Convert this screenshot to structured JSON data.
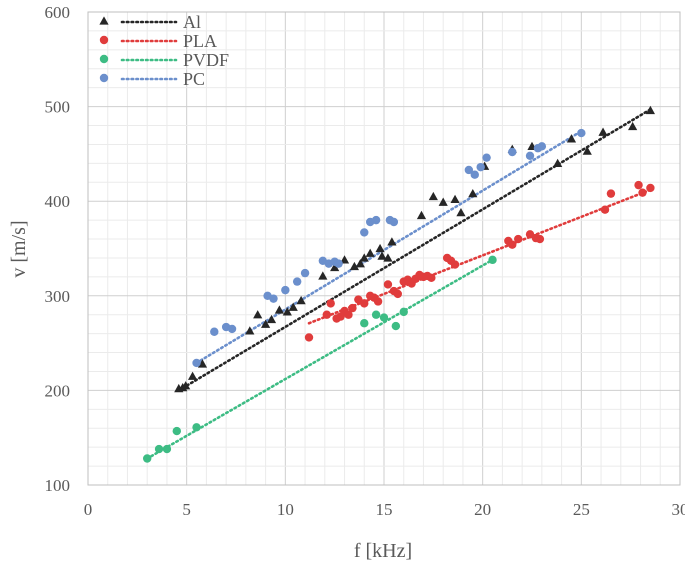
{
  "chart_data": {
    "type": "scatter",
    "title": "",
    "xlabel": "f [kHz]",
    "ylabel": "v [m/s]",
    "xlim": [
      0,
      30
    ],
    "ylim": [
      100,
      600
    ],
    "xticks": [
      0,
      5,
      10,
      15,
      20,
      25,
      30
    ],
    "yticks": [
      100,
      200,
      300,
      400,
      500,
      600
    ],
    "grid": "major and minor",
    "legend_position": "top-left",
    "series": [
      {
        "name": "Al",
        "marker": "triangle",
        "color": "#262626",
        "points": [
          [
            4.6,
            202
          ],
          [
            4.8,
            203
          ],
          [
            4.95,
            205
          ],
          [
            5.3,
            215
          ],
          [
            5.8,
            228
          ],
          [
            8.2,
            263
          ],
          [
            8.6,
            280
          ],
          [
            9.0,
            270
          ],
          [
            9.3,
            275
          ],
          [
            9.7,
            285
          ],
          [
            10.1,
            283
          ],
          [
            10.4,
            288
          ],
          [
            10.8,
            295
          ],
          [
            11.9,
            321
          ],
          [
            12.5,
            330
          ],
          [
            13.0,
            338
          ],
          [
            13.5,
            331
          ],
          [
            13.8,
            334
          ],
          [
            14.0,
            340
          ],
          [
            14.3,
            345
          ],
          [
            14.8,
            350
          ],
          [
            14.9,
            342
          ],
          [
            15.2,
            340
          ],
          [
            15.4,
            357
          ],
          [
            16.9,
            385
          ],
          [
            17.5,
            405
          ],
          [
            18.0,
            399
          ],
          [
            18.6,
            402
          ],
          [
            18.9,
            388
          ],
          [
            19.5,
            408
          ],
          [
            20.1,
            437
          ],
          [
            21.5,
            455
          ],
          [
            22.5,
            458
          ],
          [
            23.8,
            440
          ],
          [
            24.5,
            466
          ],
          [
            25.3,
            453
          ],
          [
            26.1,
            473
          ],
          [
            27.6,
            479
          ],
          [
            28.5,
            496
          ]
        ],
        "trendline": [
          [
            4.6,
            200
          ],
          [
            28.5,
            497
          ]
        ]
      },
      {
        "name": "PLA",
        "marker": "circle",
        "color": "#e03c3c",
        "points": [
          [
            11.2,
            256
          ],
          [
            12.1,
            280
          ],
          [
            12.3,
            292
          ],
          [
            12.6,
            276
          ],
          [
            12.8,
            278
          ],
          [
            13.0,
            284
          ],
          [
            13.2,
            280
          ],
          [
            13.4,
            287
          ],
          [
            13.7,
            296
          ],
          [
            14.0,
            292
          ],
          [
            14.3,
            300
          ],
          [
            14.5,
            298
          ],
          [
            14.7,
            294
          ],
          [
            15.2,
            312
          ],
          [
            15.5,
            305
          ],
          [
            15.7,
            302
          ],
          [
            16.0,
            315
          ],
          [
            16.2,
            317
          ],
          [
            16.4,
            313
          ],
          [
            16.6,
            318
          ],
          [
            16.8,
            322
          ],
          [
            17.0,
            320
          ],
          [
            17.2,
            321
          ],
          [
            17.4,
            319
          ],
          [
            18.2,
            340
          ],
          [
            18.4,
            337
          ],
          [
            18.6,
            333
          ],
          [
            21.3,
            358
          ],
          [
            21.5,
            354
          ],
          [
            21.8,
            360
          ],
          [
            22.4,
            365
          ],
          [
            22.7,
            361
          ],
          [
            22.9,
            360
          ],
          [
            26.2,
            391
          ],
          [
            26.5,
            408
          ],
          [
            27.9,
            417
          ],
          [
            28.1,
            409
          ],
          [
            28.5,
            414
          ]
        ],
        "trendline": [
          [
            11.2,
            271
          ],
          [
            28.5,
            412
          ]
        ]
      },
      {
        "name": "PVDF",
        "marker": "circle",
        "color": "#3dbc84",
        "points": [
          [
            3.0,
            128
          ],
          [
            3.6,
            138
          ],
          [
            4.0,
            138
          ],
          [
            4.5,
            157
          ],
          [
            5.5,
            161
          ],
          [
            14.0,
            271
          ],
          [
            14.6,
            280
          ],
          [
            15.0,
            277
          ],
          [
            15.6,
            268
          ],
          [
            16.0,
            283
          ],
          [
            20.5,
            338
          ]
        ],
        "trendline": [
          [
            3.0,
            128
          ],
          [
            20.5,
            338
          ]
        ]
      },
      {
        "name": "PC",
        "marker": "circle",
        "color": "#6b8fcc",
        "points": [
          [
            5.5,
            229
          ],
          [
            6.4,
            262
          ],
          [
            7.0,
            267
          ],
          [
            7.3,
            265
          ],
          [
            9.1,
            300
          ],
          [
            9.4,
            297
          ],
          [
            10.0,
            306
          ],
          [
            10.6,
            315
          ],
          [
            11.0,
            324
          ],
          [
            11.9,
            337
          ],
          [
            12.2,
            334
          ],
          [
            12.5,
            336
          ],
          [
            12.7,
            334
          ],
          [
            14.0,
            367
          ],
          [
            14.3,
            378
          ],
          [
            14.6,
            380
          ],
          [
            15.3,
            380
          ],
          [
            15.5,
            378
          ],
          [
            19.3,
            433
          ],
          [
            19.6,
            428
          ],
          [
            19.9,
            436
          ],
          [
            20.2,
            446
          ],
          [
            21.5,
            452
          ],
          [
            22.4,
            448
          ],
          [
            22.8,
            456
          ],
          [
            23.0,
            458
          ],
          [
            25.0,
            472
          ]
        ],
        "trendline": [
          [
            5.5,
            229
          ],
          [
            25.0,
            474
          ]
        ]
      }
    ]
  }
}
